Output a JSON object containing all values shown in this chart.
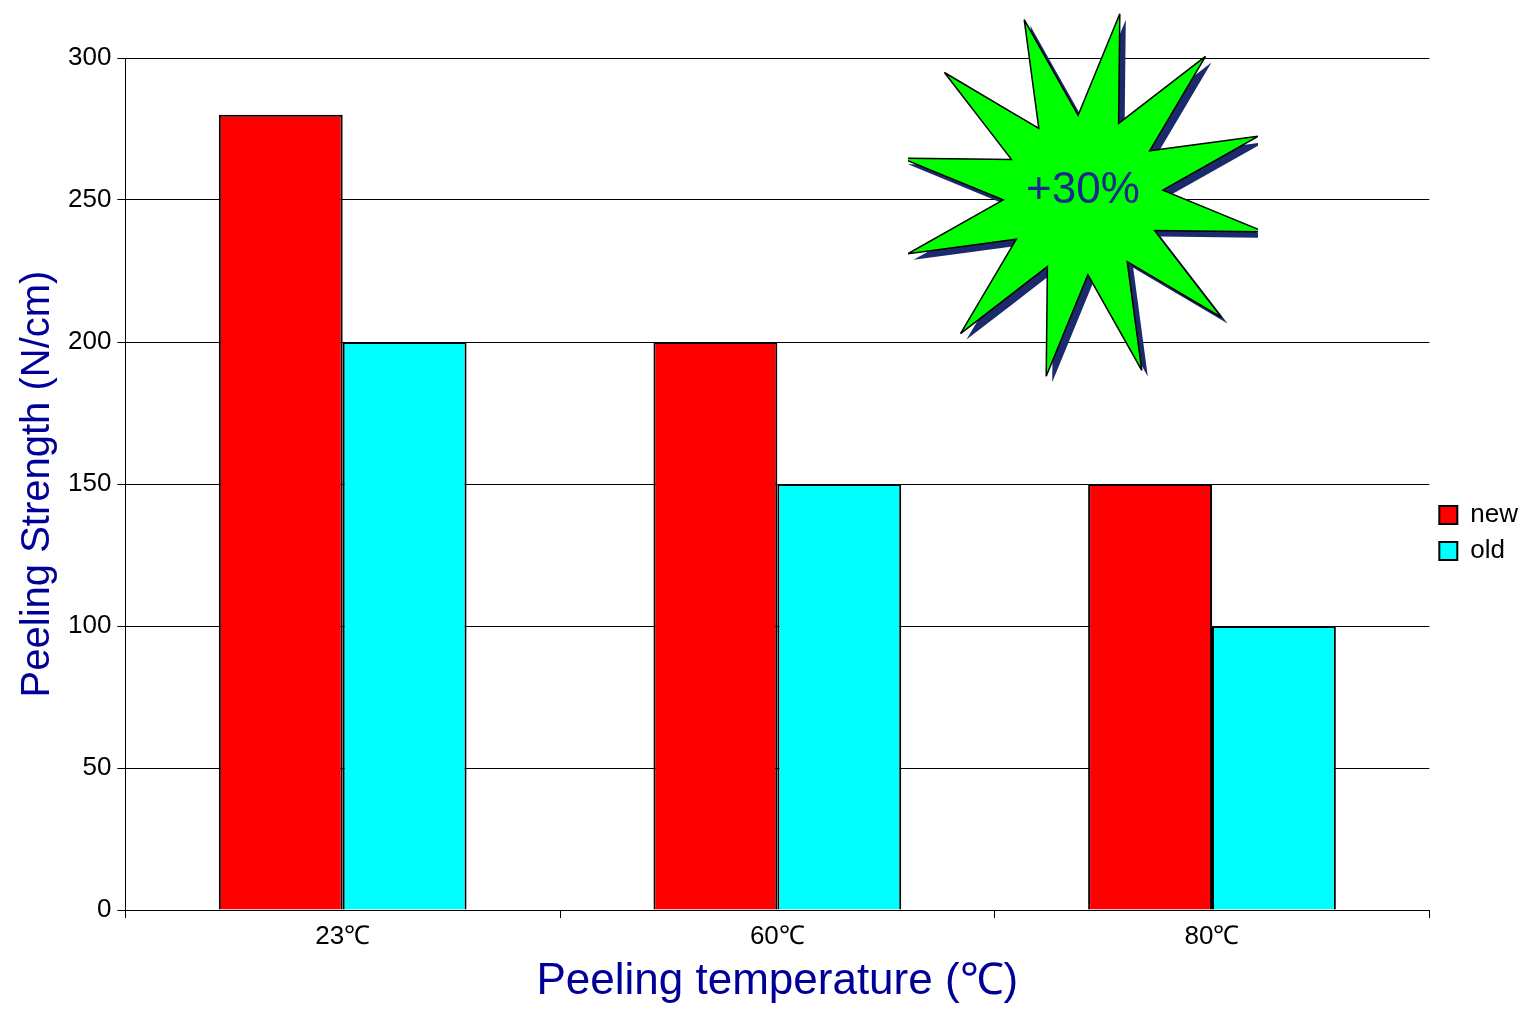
{
  "chart_data": {
    "type": "bar",
    "xlabel": "Peeling temperature (℃)",
    "ylabel": "Peeling Strength (N/cm)",
    "categories": [
      "23℃",
      "60℃",
      "80℃"
    ],
    "series": [
      {
        "name": "new",
        "color": "#ff0000",
        "values": [
          280,
          200,
          150
        ]
      },
      {
        "name": "old",
        "color": "#00ffff",
        "values": [
          200,
          150,
          100
        ]
      }
    ],
    "ylim": [
      0,
      300
    ],
    "yticks": [
      0,
      50,
      100,
      150,
      200,
      250,
      300
    ],
    "grid": "y",
    "legend": "right",
    "annotations": [
      "+30%"
    ]
  }
}
